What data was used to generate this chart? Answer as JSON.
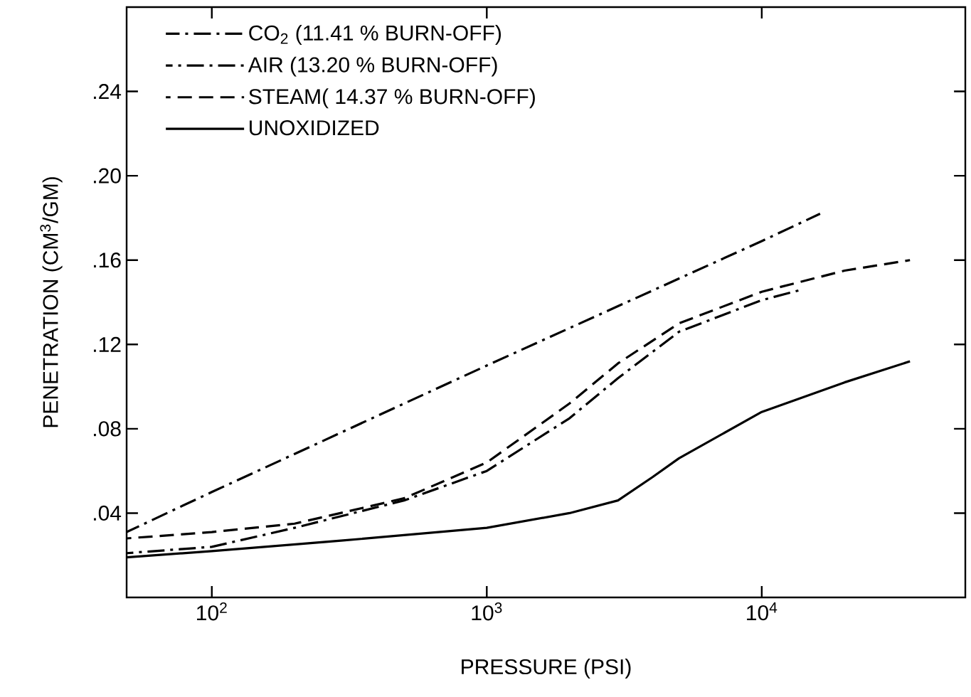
{
  "chart_data": {
    "type": "line",
    "xlabel": "PRESSURE (PSI)",
    "ylabel": "PENETRATION (CM$^{3}$/GM)",
    "log": "x",
    "xlim": [
      49,
      55000
    ],
    "ylim": [
      0,
      0.28
    ],
    "xticks": [
      {
        "value": 100,
        "label": "10$^{2}$"
      },
      {
        "value": 1000,
        "label": "10$^{3}$"
      },
      {
        "value": 10000,
        "label": "10$^{4}$"
      }
    ],
    "yticks": [
      {
        "value": 0.04,
        "label": ".04"
      },
      {
        "value": 0.08,
        "label": ".08"
      },
      {
        "value": 0.12,
        "label": ".12"
      },
      {
        "value": 0.16,
        "label": ".16"
      },
      {
        "value": 0.2,
        "label": ".20"
      },
      {
        "value": 0.24,
        "label": ".24"
      }
    ],
    "legend": "top left",
    "grid": false,
    "series": [
      {
        "name": "CO$_{2}$ (11.41 % BURN-OFF)",
        "color": "#000000",
        "line_style": "dashdot",
        "x": [
          49,
          100,
          1000,
          10000,
          16300
        ],
        "values": [
          0.031,
          0.05,
          0.11,
          0.169,
          0.182
        ]
      },
      {
        "name": "AIR (13.20 % BURN-OFF)",
        "color": "#000000",
        "line_style": "dashdot",
        "x": [
          49,
          100,
          200,
          500,
          1000,
          2000,
          3000,
          5000,
          10000,
          14000
        ],
        "values": [
          0.021,
          0.024,
          0.033,
          0.046,
          0.06,
          0.085,
          0.104,
          0.126,
          0.141,
          0.146
        ]
      },
      {
        "name": "STEAM( 14.37 % BURN-OFF)",
        "color": "#000000",
        "line_style": "dashed",
        "x": [
          49,
          100,
          200,
          500,
          1000,
          2000,
          3000,
          5000,
          10000,
          20000,
          34600
        ],
        "values": [
          0.028,
          0.031,
          0.035,
          0.047,
          0.064,
          0.092,
          0.111,
          0.13,
          0.145,
          0.155,
          0.16
        ]
      },
      {
        "name": "UNOXIDIZED",
        "color": "#000000",
        "line_style": "solid",
        "x": [
          49,
          100,
          300,
          1000,
          2000,
          3000,
          4000,
          5000,
          10000,
          20000,
          34600
        ],
        "values": [
          0.019,
          0.022,
          0.027,
          0.033,
          0.04,
          0.046,
          0.057,
          0.066,
          0.088,
          0.102,
          0.112
        ]
      }
    ]
  }
}
